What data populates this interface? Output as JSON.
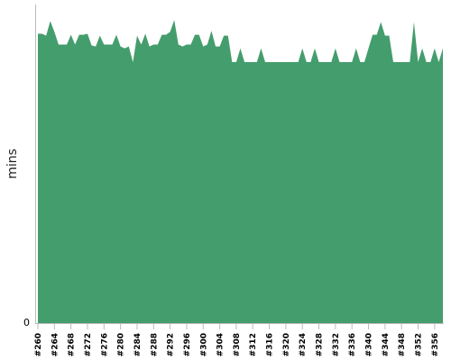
{
  "chart_data": {
    "type": "area",
    "ylabel": "mins",
    "xlabel": "",
    "y_tick_labels": [
      "0"
    ],
    "x_tick_labels": [
      "#260",
      "#264",
      "#268",
      "#272",
      "#276",
      "#280",
      "#284",
      "#288",
      "#292",
      "#296",
      "#300",
      "#304",
      "#308",
      "#312",
      "#316",
      "#320",
      "#324",
      "#328",
      "#332",
      "#336",
      "#340",
      "#344",
      "#348",
      "#352",
      "#356"
    ],
    "x_start": 260,
    "x_end": 358,
    "ylim": [
      0,
      32.5
    ],
    "grid": false,
    "legend": "none",
    "color": "#449d6d",
    "series": [
      {
        "values": [
          29.6,
          29.6,
          29.4,
          30.9,
          29.8,
          28.5,
          28.5,
          28.5,
          29.5,
          28.5,
          29.5,
          29.5,
          29.6,
          28.4,
          28.3,
          29.4,
          28.5,
          28.5,
          28.5,
          29.5,
          28.3,
          28.1,
          28.3,
          26.7,
          29.4,
          28.5,
          29.6,
          28.3,
          28.5,
          28.5,
          29.5,
          29.5,
          29.8,
          31.0,
          28.5,
          28.3,
          28.5,
          28.5,
          29.5,
          29.5,
          28.3,
          28.5,
          29.9,
          28.3,
          28.3,
          29.4,
          29.4,
          26.7,
          26.7,
          28.1,
          26.7,
          26.7,
          26.7,
          26.7,
          28.1,
          26.7,
          26.7,
          26.7,
          26.7,
          26.7,
          26.7,
          26.7,
          26.7,
          26.7,
          28.1,
          26.7,
          26.7,
          28.1,
          26.7,
          26.7,
          26.7,
          26.7,
          28.1,
          26.7,
          26.7,
          26.7,
          26.7,
          28.1,
          26.7,
          26.7,
          28.1,
          29.5,
          29.5,
          30.8,
          29.4,
          29.4,
          26.7,
          26.7,
          26.7,
          26.7,
          26.7,
          30.8,
          26.7,
          28.1,
          26.7,
          26.7,
          28.1,
          26.7,
          28.1
        ]
      }
    ]
  }
}
